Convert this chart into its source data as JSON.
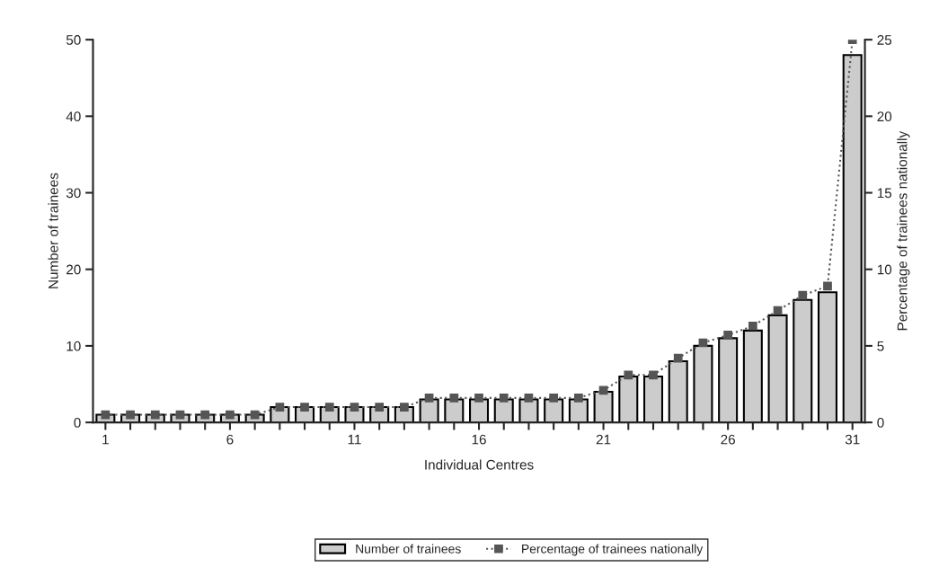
{
  "chart_data": {
    "type": "bar",
    "xlabel": "Individual Centres",
    "ylabel": "Number of trainees",
    "y2label": "Percentage of trainees nationally",
    "x": [
      1,
      2,
      3,
      4,
      5,
      6,
      7,
      8,
      9,
      10,
      11,
      12,
      13,
      14,
      15,
      16,
      17,
      18,
      19,
      20,
      21,
      22,
      23,
      24,
      25,
      26,
      27,
      28,
      29,
      30,
      31
    ],
    "xlim": [
      0.5,
      31.5
    ],
    "xticks": [
      1,
      {
        "value": 2,
        "label": null
      },
      {
        "value": 3,
        "label": null
      },
      {
        "value": 4,
        "label": null
      },
      {
        "value": 5,
        "label": null
      },
      6,
      {
        "value": 7,
        "label": null
      },
      {
        "value": 8,
        "label": null
      },
      {
        "value": 9,
        "label": null
      },
      {
        "value": 10,
        "label": null
      },
      11,
      {
        "value": 12,
        "label": null
      },
      {
        "value": 13,
        "label": null
      },
      {
        "value": 14,
        "label": null
      },
      {
        "value": 15,
        "label": null
      },
      16,
      {
        "value": 17,
        "label": null
      },
      {
        "value": 18,
        "label": null
      },
      {
        "value": 19,
        "label": null
      },
      {
        "value": 20,
        "label": null
      },
      21,
      {
        "value": 22,
        "label": null
      },
      {
        "value": 23,
        "label": null
      },
      {
        "value": 24,
        "label": null
      },
      {
        "value": 25,
        "label": null
      },
      26,
      {
        "value": 27,
        "label": null
      },
      {
        "value": 28,
        "label": null
      },
      {
        "value": 29,
        "label": null
      },
      {
        "value": 30,
        "label": null
      },
      31
    ],
    "ylim": [
      0,
      50
    ],
    "yticks": [
      0,
      10,
      20,
      30,
      40,
      50
    ],
    "y2lim": [
      0,
      25
    ],
    "y2ticks": [
      0,
      5,
      10,
      15,
      20,
      25
    ],
    "series": [
      {
        "name": "Number of trainees",
        "color": "#cccccc",
        "values": [
          1,
          1,
          1,
          1,
          1,
          1,
          1,
          2,
          2,
          2,
          2,
          2,
          2,
          3,
          3,
          3,
          3,
          3,
          3,
          3,
          4,
          6,
          6,
          8,
          10,
          11,
          12,
          14,
          16,
          17,
          48
        ]
      },
      {
        "name": "Percentage of trainees nationally",
        "type": "line",
        "axis": "y2",
        "color": "#555555",
        "marker": "square",
        "line_style": "dotted",
        "values": [
          0.5,
          0.5,
          0.5,
          0.5,
          0.5,
          0.5,
          0.5,
          1.0,
          1.0,
          1.0,
          1.0,
          1.0,
          1.0,
          1.6,
          1.6,
          1.6,
          1.6,
          1.6,
          1.6,
          1.6,
          2.1,
          3.1,
          3.1,
          4.2,
          5.2,
          5.7,
          6.3,
          7.3,
          8.3,
          8.9,
          25.0
        ]
      }
    ],
    "legend": "bottom",
    "grid": false
  }
}
